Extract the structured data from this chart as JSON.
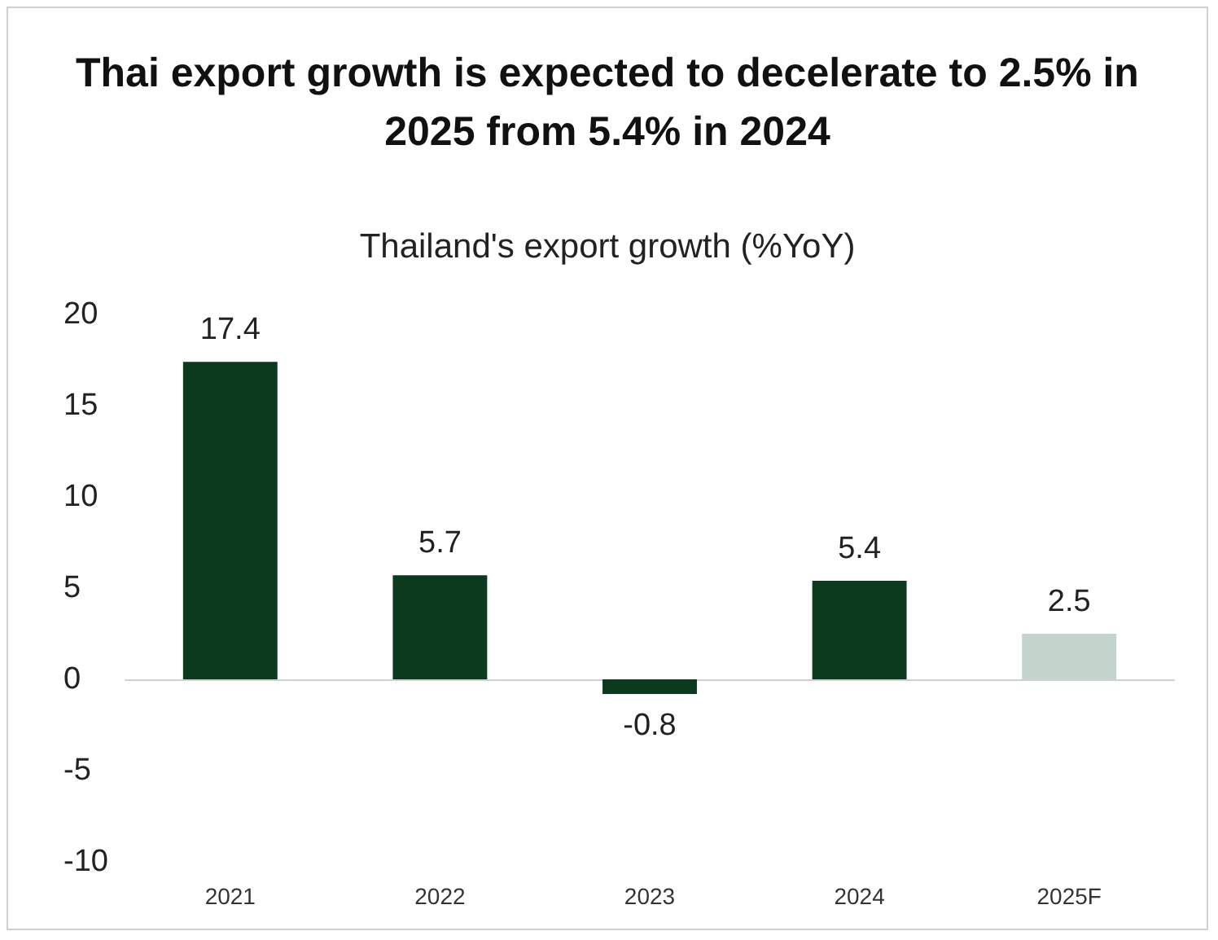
{
  "chart_data": {
    "type": "bar",
    "title": "Thai export growth is expected to decelerate to 2.5% in 2025 from 5.4% in 2024",
    "subtitle": "Thailand's export growth (%YoY)",
    "categories": [
      "2021",
      "2022",
      "2023",
      "2024",
      "2025F"
    ],
    "values": [
      17.4,
      5.7,
      -0.8,
      5.4,
      2.5
    ],
    "colors": [
      "#0b3a1f",
      "#0b3a1f",
      "#0b3a1f",
      "#0b3a1f",
      "#c3d4cd"
    ],
    "ylim": [
      -10,
      20
    ],
    "yticks": [
      -10,
      -5,
      0,
      5,
      10,
      15,
      20
    ],
    "data_labels": true
  }
}
